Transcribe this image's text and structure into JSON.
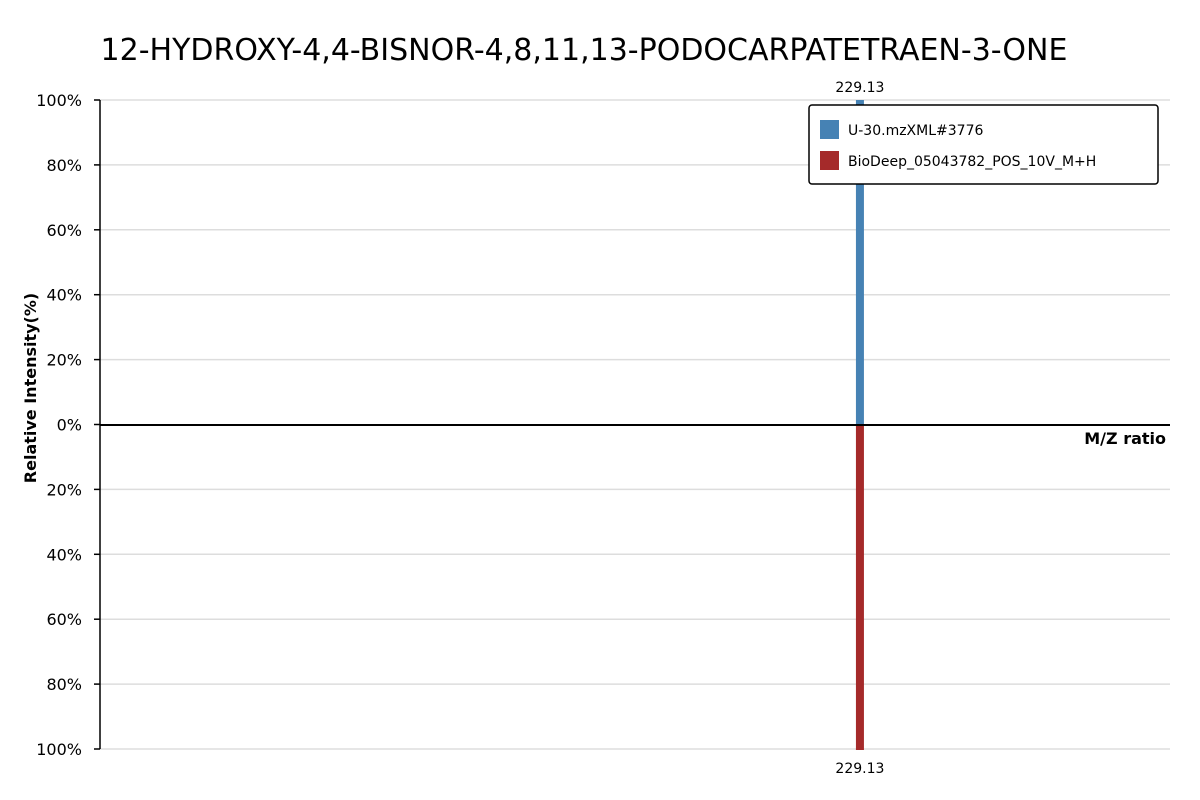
{
  "chart_data": {
    "type": "bar",
    "title": "12-HYDROXY-4,4-BISNOR-4,8,11,13-PODOCARPATETRAEN-3-ONE",
    "xlabel": "M/Z ratio",
    "ylabel": "Relative Intensity(%)",
    "ylim": [
      -100,
      100
    ],
    "yticks": [
      "100%",
      "80%",
      "60%",
      "40%",
      "20%",
      "0%",
      "20%",
      "40%",
      "60%",
      "80%",
      "100%"
    ],
    "grid": true,
    "legend_position": "top-right",
    "series": [
      {
        "name": "U-30.mzXML#3776",
        "color": "#4682B4",
        "direction": "up",
        "peaks": [
          {
            "mz": 229.13,
            "label": "229.13",
            "intensity": 100
          }
        ]
      },
      {
        "name": "BioDeep_05043782_POS_10V_M+H",
        "color": "#A52A2A",
        "direction": "down",
        "peaks": [
          {
            "mz": 229.13,
            "label": "229.13",
            "intensity": 100
          }
        ]
      }
    ]
  }
}
